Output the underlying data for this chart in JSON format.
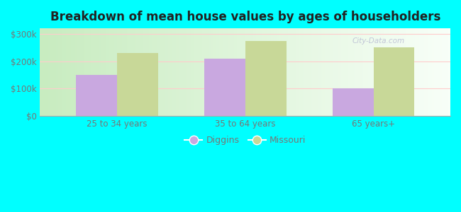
{
  "title": "Breakdown of mean house values by ages of householders",
  "categories": [
    "25 to 34 years",
    "35 to 64 years",
    "65 years+"
  ],
  "diggins_values": [
    150000,
    210000,
    100000
  ],
  "missouri_values": [
    230000,
    275000,
    250000
  ],
  "diggins_color": "#c9a8e0",
  "missouri_color": "#c8d898",
  "bar_width": 0.32,
  "ylim": [
    0,
    320000
  ],
  "yticks": [
    0,
    100000,
    200000,
    300000
  ],
  "ytick_labels": [
    "$0",
    "$100k",
    "$200k",
    "$300k"
  ],
  "background_color": "#00ffff",
  "plot_bg_color_left": "#d8f0d0",
  "plot_bg_color_right": "#f5fff5",
  "legend_labels": [
    "Diggins",
    "Missouri"
  ],
  "title_fontsize": 12,
  "tick_fontsize": 8.5,
  "legend_fontsize": 9,
  "tick_color": "#777777",
  "title_color": "#222222"
}
